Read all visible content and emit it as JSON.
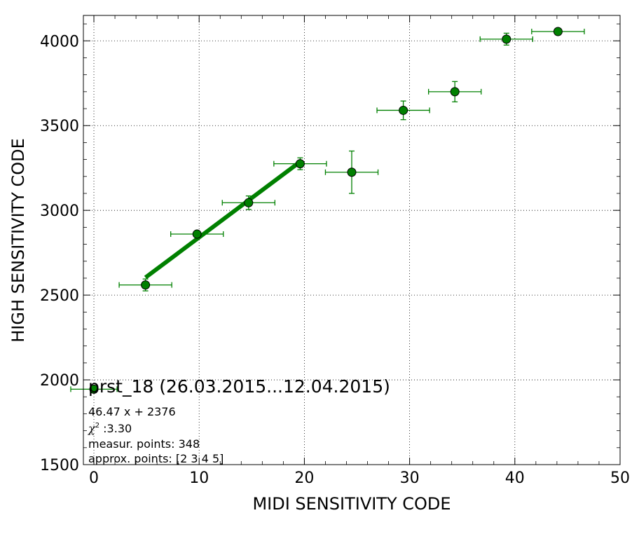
{
  "chart_data": {
    "type": "scatter",
    "xlabel": "MIDI SENSITIVITY CODE",
    "ylabel": "HIGH SENSITIVITY CODE",
    "xlim": [
      -1,
      50
    ],
    "ylim": [
      1500,
      4150
    ],
    "x_ticks": [
      0,
      10,
      20,
      30,
      40,
      50
    ],
    "y_ticks": [
      1500,
      2000,
      2500,
      3000,
      3500,
      4000
    ],
    "grid": true,
    "colors": {
      "points": "#008000",
      "fit": "#008000",
      "errorbars": "#008000"
    },
    "points": [
      {
        "x": 0,
        "y": 1945,
        "xerr": 2.2,
        "yerr": 0
      },
      {
        "x": 4.9,
        "y": 2560,
        "xerr": 2.5,
        "yerr": 35
      },
      {
        "x": 9.8,
        "y": 2860,
        "xerr": 2.5,
        "yerr": 15
      },
      {
        "x": 14.7,
        "y": 3045,
        "xerr": 2.5,
        "yerr": 40
      },
      {
        "x": 19.6,
        "y": 3275,
        "xerr": 2.5,
        "yerr": 35
      },
      {
        "x": 24.5,
        "y": 3225,
        "xerr": 2.5,
        "yerr": 125
      },
      {
        "x": 29.4,
        "y": 3590,
        "xerr": 2.5,
        "yerr": 55
      },
      {
        "x": 34.3,
        "y": 3700,
        "xerr": 2.5,
        "yerr": 60
      },
      {
        "x": 39.2,
        "y": 4010,
        "xerr": 2.5,
        "yerr": 35
      },
      {
        "x": 44.1,
        "y": 4055,
        "xerr": 2.5,
        "yerr": 10
      }
    ],
    "fit_line": {
      "slope": 46.47,
      "intercept": 2376,
      "x_range": [
        4.9,
        19.6
      ]
    },
    "annotations": {
      "title": "prst_18 (26.03.2015...12.04.2015)",
      "equation": "46.47 x + 2376",
      "chi_symbol": "χ",
      "chi_exp": "2",
      "chi_value": " :3.30",
      "measur_points": "measur. points: 348",
      "approx_points": "approx. points: [2 3 4 5]"
    }
  }
}
